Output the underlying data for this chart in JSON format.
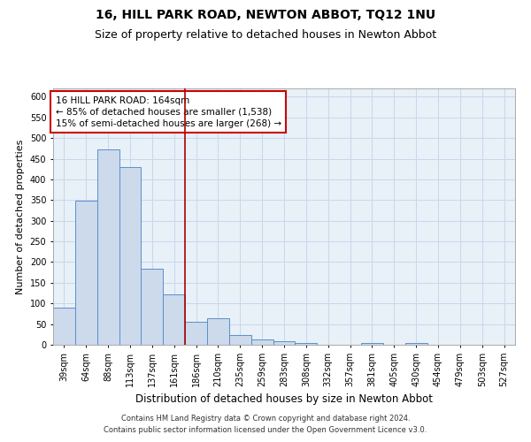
{
  "title": "16, HILL PARK ROAD, NEWTON ABBOT, TQ12 1NU",
  "subtitle": "Size of property relative to detached houses in Newton Abbot",
  "xlabel": "Distribution of detached houses by size in Newton Abbot",
  "ylabel": "Number of detached properties",
  "footer1": "Contains HM Land Registry data © Crown copyright and database right 2024.",
  "footer2": "Contains public sector information licensed under the Open Government Licence v3.0.",
  "bar_labels": [
    "39sqm",
    "64sqm",
    "88sqm",
    "113sqm",
    "137sqm",
    "161sqm",
    "186sqm",
    "210sqm",
    "235sqm",
    "259sqm",
    "283sqm",
    "308sqm",
    "332sqm",
    "357sqm",
    "381sqm",
    "405sqm",
    "430sqm",
    "454sqm",
    "479sqm",
    "503sqm",
    "527sqm"
  ],
  "bar_values": [
    89,
    348,
    472,
    430,
    183,
    122,
    55,
    65,
    24,
    12,
    8,
    4,
    0,
    0,
    4,
    0,
    4,
    0,
    0,
    0,
    0
  ],
  "bar_color": "#ccdaec",
  "bar_edge_color": "#5b8fc9",
  "property_line_index": 5.5,
  "annotation_line1": "16 HILL PARK ROAD: 164sqm",
  "annotation_line2": "← 85% of detached houses are smaller (1,538)",
  "annotation_line3": "15% of semi-detached houses are larger (268) →",
  "annotation_box_color": "#cc0000",
  "vline_color": "#aa0000",
  "ylim": [
    0,
    620
  ],
  "yticks": [
    0,
    50,
    100,
    150,
    200,
    250,
    300,
    350,
    400,
    450,
    500,
    550,
    600
  ],
  "grid_color": "#c8d8ea",
  "bg_color": "#e8f0f8",
  "title_fontsize": 10,
  "subtitle_fontsize": 9,
  "tick_fontsize": 7,
  "ylabel_fontsize": 8,
  "xlabel_fontsize": 8.5,
  "annotation_fontsize": 7.5,
  "footer_fontsize": 6
}
